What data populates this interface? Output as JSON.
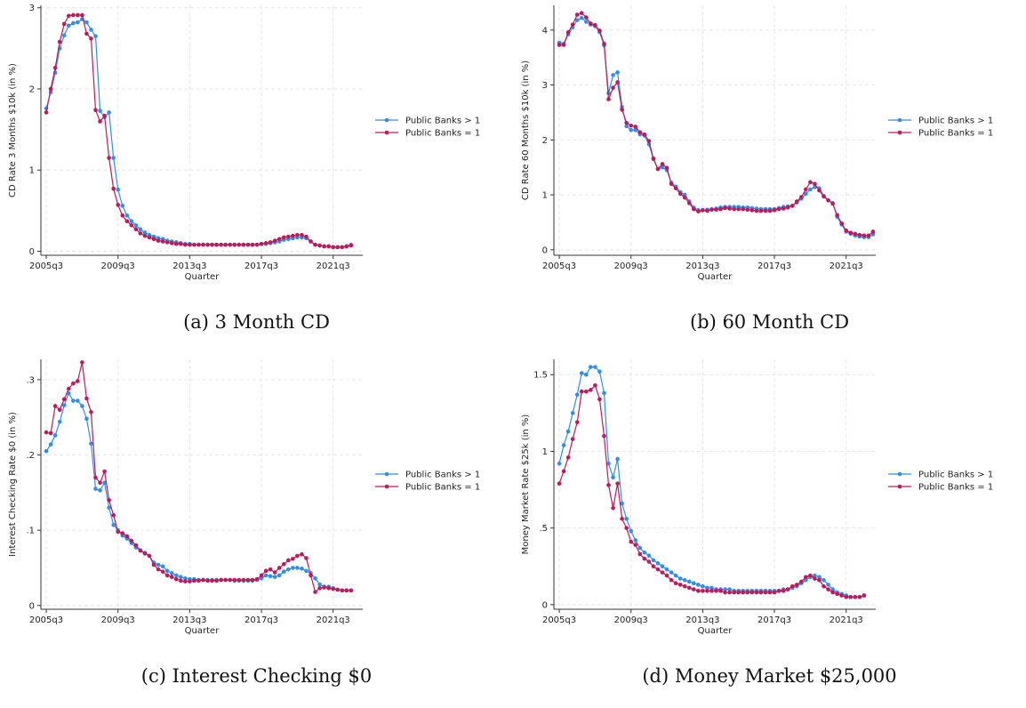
{
  "colors": {
    "series_a": "#2f8fe8",
    "series_b": "#c0195a",
    "grid": "#e6e6e6",
    "axis": "#333333"
  },
  "chart_data": [
    {
      "type": "line",
      "caption": "(a) 3 Month CD",
      "xlabel": "Quarter",
      "ylabel": "CD Rate 3 Months $10k (in %)",
      "x_start_quarter": "2005q3",
      "x_tick_labels": [
        "2005q3",
        "2009q3",
        "2013q3",
        "2017q3",
        "2021q3"
      ],
      "y_ticks": [
        0,
        1,
        2,
        3
      ],
      "y_tick_labels": [
        "0",
        "1",
        "2",
        "3"
      ],
      "ylim": [
        -0.05,
        3.03
      ],
      "grid": true,
      "legend_position": "right",
      "series": [
        {
          "name": "Public Banks > 1",
          "values": [
            1.76,
            1.96,
            2.2,
            2.5,
            2.66,
            2.78,
            2.81,
            2.82,
            2.86,
            2.82,
            2.73,
            2.65,
            1.73,
            1.65,
            1.71,
            1.15,
            0.76,
            0.56,
            0.44,
            0.37,
            0.32,
            0.27,
            0.23,
            0.2,
            0.18,
            0.16,
            0.15,
            0.13,
            0.12,
            0.11,
            0.1,
            0.09,
            0.09,
            0.08,
            0.08,
            0.08,
            0.08,
            0.08,
            0.08,
            0.08,
            0.08,
            0.08,
            0.08,
            0.08,
            0.08,
            0.08,
            0.08,
            0.08,
            0.09,
            0.09,
            0.1,
            0.11,
            0.12,
            0.14,
            0.15,
            0.16,
            0.17,
            0.17,
            0.16,
            0.12,
            0.08,
            0.07,
            0.06,
            0.06,
            0.05,
            0.05,
            0.05,
            0.06,
            0.08
          ]
        },
        {
          "name": "Public Banks = 1",
          "values": [
            1.71,
            2.0,
            2.26,
            2.58,
            2.8,
            2.9,
            2.91,
            2.91,
            2.91,
            2.68,
            2.62,
            1.74,
            1.6,
            1.67,
            1.15,
            0.77,
            0.57,
            0.44,
            0.37,
            0.32,
            0.27,
            0.22,
            0.19,
            0.17,
            0.15,
            0.13,
            0.12,
            0.11,
            0.1,
            0.09,
            0.09,
            0.08,
            0.08,
            0.08,
            0.08,
            0.08,
            0.08,
            0.08,
            0.08,
            0.08,
            0.08,
            0.08,
            0.08,
            0.08,
            0.08,
            0.08,
            0.08,
            0.08,
            0.09,
            0.1,
            0.11,
            0.13,
            0.15,
            0.17,
            0.18,
            0.19,
            0.2,
            0.2,
            0.18,
            0.12,
            0.08,
            0.07,
            0.06,
            0.06,
            0.05,
            0.05,
            0.05,
            0.06,
            0.07
          ]
        }
      ]
    },
    {
      "type": "line",
      "caption": "(b) 60 Month CD",
      "xlabel": "Quarter",
      "ylabel": "CD Rate 60 Months $10k (in %)",
      "x_start_quarter": "2005q3",
      "x_tick_labels": [
        "2005q3",
        "2009q3",
        "2013q3",
        "2017q3",
        "2021q3"
      ],
      "y_ticks": [
        0,
        1,
        2,
        3,
        4
      ],
      "y_tick_labels": [
        "0",
        "1",
        "2",
        "3",
        "4"
      ],
      "ylim": [
        -0.1,
        4.45
      ],
      "grid": true,
      "legend_position": "right",
      "series": [
        {
          "name": "Public Banks > 1",
          "values": [
            3.77,
            3.75,
            3.92,
            4.05,
            4.18,
            4.22,
            4.15,
            4.1,
            4.07,
            3.96,
            3.72,
            2.85,
            3.18,
            3.23,
            2.6,
            2.25,
            2.18,
            2.18,
            2.1,
            2.08,
            1.92,
            1.65,
            1.47,
            1.5,
            1.45,
            1.22,
            1.15,
            1.05,
            1.0,
            0.88,
            0.77,
            0.72,
            0.72,
            0.73,
            0.74,
            0.75,
            0.77,
            0.78,
            0.78,
            0.78,
            0.78,
            0.77,
            0.77,
            0.76,
            0.75,
            0.74,
            0.74,
            0.74,
            0.74,
            0.76,
            0.78,
            0.79,
            0.8,
            0.86,
            0.93,
            1.02,
            1.1,
            1.14,
            1.12,
            0.98,
            0.9,
            0.85,
            0.6,
            0.46,
            0.33,
            0.29,
            0.26,
            0.24,
            0.23,
            0.23,
            0.28
          ]
        },
        {
          "name": "Public Banks = 1",
          "values": [
            3.73,
            3.73,
            3.96,
            4.1,
            4.28,
            4.31,
            4.23,
            4.12,
            4.09,
            3.99,
            3.75,
            2.74,
            2.95,
            3.05,
            2.55,
            2.31,
            2.26,
            2.24,
            2.14,
            2.1,
            1.98,
            1.66,
            1.47,
            1.56,
            1.49,
            1.2,
            1.12,
            1.02,
            0.95,
            0.85,
            0.74,
            0.7,
            0.72,
            0.71,
            0.73,
            0.73,
            0.74,
            0.76,
            0.75,
            0.74,
            0.74,
            0.74,
            0.73,
            0.72,
            0.71,
            0.71,
            0.71,
            0.71,
            0.72,
            0.74,
            0.75,
            0.77,
            0.8,
            0.88,
            0.96,
            1.1,
            1.23,
            1.2,
            1.08,
            0.97,
            0.9,
            0.84,
            0.63,
            0.48,
            0.35,
            0.31,
            0.29,
            0.27,
            0.26,
            0.26,
            0.33
          ]
        }
      ]
    },
    {
      "type": "line",
      "caption": "(c) Interest Checking $0",
      "xlabel": "Quarter",
      "ylabel": "Interest Checking Rate $0 (in %)",
      "x_start_quarter": "2005q3",
      "x_tick_labels": [
        "2005q3",
        "2009q3",
        "2013q3",
        "2017q3",
        "2021q3"
      ],
      "y_ticks": [
        0,
        0.1,
        0.2,
        0.3
      ],
      "y_tick_labels": [
        "0",
        ".1",
        ".2",
        ".3"
      ],
      "ylim": [
        -0.005,
        0.327
      ],
      "grid": true,
      "legend_position": "right",
      "series": [
        {
          "name": "Public Banks > 1",
          "values": [
            0.205,
            0.214,
            0.226,
            0.244,
            0.266,
            0.282,
            0.272,
            0.272,
            0.265,
            0.248,
            0.215,
            0.155,
            0.153,
            0.163,
            0.13,
            0.107,
            0.1,
            0.093,
            0.089,
            0.083,
            0.077,
            0.073,
            0.07,
            0.066,
            0.057,
            0.054,
            0.052,
            0.046,
            0.043,
            0.04,
            0.038,
            0.036,
            0.035,
            0.035,
            0.034,
            0.034,
            0.034,
            0.034,
            0.034,
            0.034,
            0.034,
            0.034,
            0.033,
            0.033,
            0.033,
            0.033,
            0.033,
            0.034,
            0.036,
            0.04,
            0.039,
            0.038,
            0.04,
            0.045,
            0.048,
            0.05,
            0.05,
            0.049,
            0.046,
            0.043,
            0.036,
            0.028,
            0.025,
            0.025,
            0.023,
            0.021,
            0.02,
            0.02,
            0.02
          ]
        },
        {
          "name": "Public Banks = 1",
          "values": [
            0.23,
            0.229,
            0.265,
            0.26,
            0.274,
            0.288,
            0.295,
            0.298,
            0.323,
            0.275,
            0.257,
            0.17,
            0.163,
            0.178,
            0.14,
            0.12,
            0.098,
            0.096,
            0.092,
            0.086,
            0.08,
            0.073,
            0.069,
            0.066,
            0.054,
            0.048,
            0.045,
            0.04,
            0.038,
            0.035,
            0.033,
            0.032,
            0.032,
            0.033,
            0.033,
            0.034,
            0.033,
            0.033,
            0.033,
            0.034,
            0.034,
            0.034,
            0.034,
            0.034,
            0.034,
            0.034,
            0.034,
            0.035,
            0.04,
            0.046,
            0.048,
            0.044,
            0.05,
            0.055,
            0.06,
            0.062,
            0.066,
            0.068,
            0.063,
            0.04,
            0.018,
            0.023,
            0.024,
            0.023,
            0.022,
            0.021,
            0.02,
            0.02,
            0.02
          ]
        }
      ]
    },
    {
      "type": "line",
      "caption": "(d) Money Market $25,000",
      "xlabel": "Quarter",
      "ylabel": "Money Market Rate $25k (in %)",
      "x_start_quarter": "2005q3",
      "x_tick_labels": [
        "2005q3",
        "2009q3",
        "2013q3",
        "2017q3",
        "2021q3"
      ],
      "y_ticks": [
        0,
        0.5,
        1,
        1.5
      ],
      "y_tick_labels": [
        "0",
        ".5",
        "1",
        "1.5"
      ],
      "ylim": [
        -0.03,
        1.6
      ],
      "grid": true,
      "legend_position": "right",
      "series": [
        {
          "name": "Public Banks > 1",
          "values": [
            0.92,
            1.04,
            1.13,
            1.25,
            1.37,
            1.51,
            1.5,
            1.55,
            1.55,
            1.52,
            1.38,
            0.92,
            0.83,
            0.95,
            0.66,
            0.56,
            0.48,
            0.42,
            0.37,
            0.34,
            0.32,
            0.29,
            0.27,
            0.25,
            0.23,
            0.21,
            0.19,
            0.17,
            0.16,
            0.15,
            0.14,
            0.13,
            0.12,
            0.11,
            0.11,
            0.1,
            0.1,
            0.1,
            0.1,
            0.09,
            0.09,
            0.09,
            0.09,
            0.09,
            0.09,
            0.09,
            0.09,
            0.09,
            0.09,
            0.09,
            0.1,
            0.1,
            0.11,
            0.12,
            0.14,
            0.16,
            0.18,
            0.19,
            0.18,
            0.16,
            0.13,
            0.1,
            0.08,
            0.07,
            0.06,
            0.05,
            0.05,
            0.05,
            0.06
          ]
        },
        {
          "name": "Public Banks = 1",
          "values": [
            0.79,
            0.87,
            0.96,
            1.08,
            1.19,
            1.39,
            1.39,
            1.4,
            1.43,
            1.34,
            1.1,
            0.78,
            0.63,
            0.79,
            0.56,
            0.5,
            0.41,
            0.39,
            0.33,
            0.3,
            0.28,
            0.25,
            0.23,
            0.21,
            0.19,
            0.16,
            0.14,
            0.13,
            0.12,
            0.11,
            0.1,
            0.09,
            0.09,
            0.09,
            0.09,
            0.09,
            0.09,
            0.08,
            0.08,
            0.08,
            0.08,
            0.08,
            0.08,
            0.08,
            0.08,
            0.08,
            0.08,
            0.08,
            0.08,
            0.09,
            0.09,
            0.1,
            0.12,
            0.13,
            0.15,
            0.18,
            0.19,
            0.17,
            0.16,
            0.12,
            0.1,
            0.08,
            0.07,
            0.06,
            0.05,
            0.05,
            0.05,
            0.05,
            0.06
          ]
        }
      ]
    }
  ]
}
